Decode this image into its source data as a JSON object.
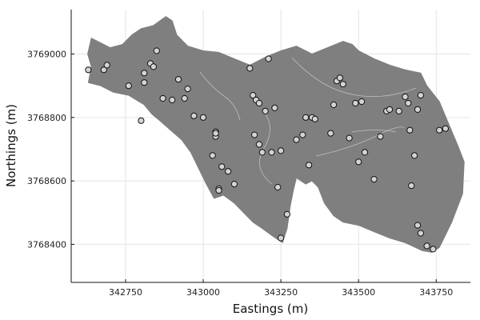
{
  "chart_data": {
    "type": "scatter",
    "title": "",
    "xlabel": "Eastings (m)",
    "ylabel": "Northings (m)",
    "xlim": [
      342575,
      343860
    ],
    "ylim": [
      3768280,
      3769140
    ],
    "xticks": [
      342750,
      343000,
      343250,
      343500,
      343750
    ],
    "yticks": [
      3768400,
      3768600,
      3768800,
      3769000
    ],
    "xtick_labels": [
      "342750",
      "343000",
      "343250",
      "343500",
      "343750"
    ],
    "ytick_labels": [
      "3768400",
      "3768600",
      "3768800",
      "3769000"
    ],
    "grid": true,
    "legend": "none",
    "region_color": "#7f7f7f",
    "point_color": "#d3d3d3",
    "region_outline": [
      [
        342640,
        3769050
      ],
      [
        342700,
        3769020
      ],
      [
        342740,
        3769030
      ],
      [
        342770,
        3769060
      ],
      [
        342800,
        3769080
      ],
      [
        342840,
        3769090
      ],
      [
        342868,
        3769110
      ],
      [
        342880,
        3769118
      ],
      [
        342900,
        3769105
      ],
      [
        342915,
        3769060
      ],
      [
        342950,
        3769025
      ],
      [
        343000,
        3769010
      ],
      [
        343050,
        3769005
      ],
      [
        343100,
        3768985
      ],
      [
        343150,
        3768965
      ],
      [
        343200,
        3768990
      ],
      [
        343250,
        3769010
      ],
      [
        343300,
        3769025
      ],
      [
        343350,
        3769000
      ],
      [
        343400,
        3769020
      ],
      [
        343450,
        3769040
      ],
      [
        343480,
        3769030
      ],
      [
        343500,
        3769010
      ],
      [
        343550,
        3768985
      ],
      [
        343600,
        3768965
      ],
      [
        343650,
        3768950
      ],
      [
        343700,
        3768940
      ],
      [
        343720,
        3768900
      ],
      [
        343760,
        3768850
      ],
      [
        343790,
        3768780
      ],
      [
        343820,
        3768710
      ],
      [
        343840,
        3768660
      ],
      [
        343835,
        3768560
      ],
      [
        343800,
        3768470
      ],
      [
        343760,
        3768390
      ],
      [
        343735,
        3768375
      ],
      [
        343705,
        3768380
      ],
      [
        343650,
        3768405
      ],
      [
        343600,
        3768420
      ],
      [
        343550,
        3768440
      ],
      [
        343500,
        3768460
      ],
      [
        343450,
        3768470
      ],
      [
        343420,
        3768490
      ],
      [
        343390,
        3768530
      ],
      [
        343370,
        3768580
      ],
      [
        343350,
        3768600
      ],
      [
        343330,
        3768590
      ],
      [
        343300,
        3768610
      ],
      [
        343290,
        3768570
      ],
      [
        343280,
        3768520
      ],
      [
        343270,
        3768450
      ],
      [
        343255,
        3768405
      ],
      [
        343225,
        3768425
      ],
      [
        343190,
        3768450
      ],
      [
        343160,
        3768470
      ],
      [
        343130,
        3768500
      ],
      [
        343100,
        3768530
      ],
      [
        343065,
        3768555
      ],
      [
        343035,
        3768545
      ],
      [
        343010,
        3768590
      ],
      [
        342985,
        3768640
      ],
      [
        342960,
        3768690
      ],
      [
        342930,
        3768730
      ],
      [
        342895,
        3768760
      ],
      [
        342860,
        3768790
      ],
      [
        342835,
        3768810
      ],
      [
        342810,
        3768840
      ],
      [
        342760,
        3768870
      ],
      [
        342710,
        3768880
      ],
      [
        342670,
        3768900
      ],
      [
        342630,
        3768910
      ],
      [
        342640,
        3768960
      ],
      [
        342628,
        3769000
      ]
    ],
    "x": [
      342630,
      342680,
      342690,
      342760,
      342800,
      342810,
      342810,
      342830,
      342840,
      342850,
      342870,
      342900,
      342920,
      342940,
      342950,
      342970,
      343000,
      343030,
      343040,
      343040,
      343050,
      343050,
      343060,
      343080,
      343100,
      343150,
      343160,
      343165,
      343170,
      343180,
      343190,
      343200,
      343210,
      343220,
      343240,
      343250,
      343250,
      343270,
      343300,
      343320,
      343330,
      343340,
      343350,
      343360,
      343410,
      343420,
      343430,
      343440,
      343450,
      343470,
      343490,
      343500,
      343510,
      343520,
      343550,
      343570,
      343590,
      343600,
      343630,
      343650,
      343660,
      343665,
      343670,
      343680,
      343690,
      343700,
      343720,
      343740,
      343760,
      343780,
      343700,
      343690,
      343230,
      343180,
      343040
    ],
    "y": [
      3768950,
      3768950,
      3768965,
      3768900,
      3768790,
      3768910,
      3768940,
      3768970,
      3768960,
      3769010,
      3768860,
      3768855,
      3768920,
      3768860,
      3768890,
      3768805,
      3768800,
      3768680,
      3768755,
      3768740,
      3768575,
      3768570,
      3768645,
      3768630,
      3768590,
      3768955,
      3768870,
      3768745,
      3768855,
      3768845,
      3768690,
      3768820,
      3768985,
      3768690,
      3768580,
      3768695,
      3768420,
      3768495,
      3768730,
      3768745,
      3768800,
      3768650,
      3768800,
      3768795,
      3768750,
      3768840,
      3768915,
      3768925,
      3768905,
      3768735,
      3768845,
      3768660,
      3768850,
      3768690,
      3768605,
      3768740,
      3768820,
      3768825,
      3768820,
      3768865,
      3768845,
      3768760,
      3768585,
      3768680,
      3768460,
      3768435,
      3768395,
      3768385,
      3768760,
      3768765,
      3768870,
      3768825,
      3768830,
      3768715,
      3768750
    ]
  }
}
